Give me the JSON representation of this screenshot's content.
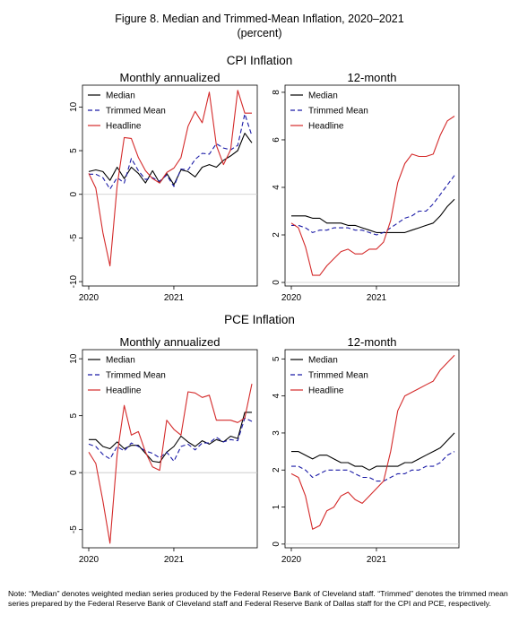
{
  "figure": {
    "title": "Figure 8. Median and Trimmed-Mean Inflation, 2020–2021",
    "subtitle": "(percent)",
    "sections": [
      {
        "title": "CPI Inflation"
      },
      {
        "title": "PCE Inflation"
      }
    ],
    "note": "Note: “Median” denotes weighted median series produced by the Federal Reserve Bank of Cleveland staff. “Trimmed” denotes the trimmed mean series prepared by the Federal Reserve Bank of Cleveland staff and Federal Reserve Bank of Dallas staff for the CPI and PCE, respectively."
  },
  "colors": {
    "median": "#000000",
    "trimmed_mean": "#1a1aa6",
    "headline": "#d42a2a",
    "zero_line": "#c8c8c8"
  },
  "chart_data": [
    {
      "id": "cpi-monthly",
      "type": "line",
      "title": "Monthly annualized",
      "x": [
        "2020-01",
        "2020-02",
        "2020-03",
        "2020-04",
        "2020-05",
        "2020-06",
        "2020-07",
        "2020-08",
        "2020-09",
        "2020-10",
        "2020-11",
        "2020-12",
        "2021-01",
        "2021-02",
        "2021-03",
        "2021-04",
        "2021-05",
        "2021-06",
        "2021-07",
        "2021-08",
        "2021-09",
        "2021-10",
        "2021-11",
        "2021-12"
      ],
      "xticks": [
        "2020",
        "2021"
      ],
      "ylim": [
        -10.5,
        12.5
      ],
      "yticks": [
        "-10",
        "-5",
        "0",
        "5",
        "10"
      ],
      "legend_position": "top-left",
      "series": [
        {
          "name": "Median",
          "style": "solid",
          "color": "#000000",
          "values": [
            2.6,
            2.8,
            2.6,
            1.6,
            3.1,
            1.8,
            3.1,
            2.4,
            1.3,
            2.7,
            1.3,
            2.4,
            1.1,
            2.8,
            2.6,
            2.0,
            3.1,
            3.4,
            3.1,
            3.9,
            4.4,
            5.0,
            7.0,
            5.9
          ]
        },
        {
          "name": "Trimmed Mean",
          "style": "dashed",
          "color": "#1a1aa6",
          "values": [
            2.3,
            2.3,
            1.9,
            0.6,
            1.9,
            1.3,
            4.1,
            2.7,
            1.7,
            1.9,
            1.5,
            2.2,
            0.9,
            2.9,
            2.8,
            4.0,
            4.7,
            4.6,
            5.8,
            5.3,
            5.1,
            5.6,
            9.2,
            6.7
          ]
        },
        {
          "name": "Headline",
          "style": "solid",
          "color": "#d42a2a",
          "values": [
            2.4,
            0.7,
            -4.4,
            -8.2,
            1.0,
            6.5,
            6.4,
            4.2,
            2.7,
            1.8,
            1.3,
            2.5,
            3.0,
            4.2,
            7.8,
            9.5,
            8.2,
            11.7,
            5.6,
            3.4,
            5.1,
            11.9,
            9.3,
            9.3
          ]
        }
      ]
    },
    {
      "id": "cpi-12month",
      "type": "line",
      "title": "12-month",
      "x": [
        "2020-01",
        "2020-02",
        "2020-03",
        "2020-04",
        "2020-05",
        "2020-06",
        "2020-07",
        "2020-08",
        "2020-09",
        "2020-10",
        "2020-11",
        "2020-12",
        "2021-01",
        "2021-02",
        "2021-03",
        "2021-04",
        "2021-05",
        "2021-06",
        "2021-07",
        "2021-08",
        "2021-09",
        "2021-10",
        "2021-11",
        "2021-12"
      ],
      "xticks": [
        "2020",
        "2021"
      ],
      "ylim": [
        -0.15,
        8.3
      ],
      "yticks": [
        "0",
        "2",
        "4",
        "6",
        "8"
      ],
      "legend_position": "top-left",
      "series": [
        {
          "name": "Median",
          "style": "solid",
          "color": "#000000",
          "values": [
            2.8,
            2.8,
            2.8,
            2.7,
            2.7,
            2.5,
            2.5,
            2.5,
            2.4,
            2.4,
            2.3,
            2.2,
            2.1,
            2.1,
            2.1,
            2.1,
            2.1,
            2.2,
            2.3,
            2.4,
            2.5,
            2.8,
            3.2,
            3.5
          ]
        },
        {
          "name": "Trimmed Mean",
          "style": "dashed",
          "color": "#1a1aa6",
          "values": [
            2.4,
            2.4,
            2.3,
            2.1,
            2.2,
            2.2,
            2.3,
            2.3,
            2.3,
            2.2,
            2.2,
            2.1,
            2.0,
            2.1,
            2.3,
            2.5,
            2.7,
            2.8,
            3.0,
            3.0,
            3.3,
            3.7,
            4.1,
            4.5
          ]
        },
        {
          "name": "Headline",
          "style": "solid",
          "color": "#d42a2a",
          "values": [
            2.5,
            2.3,
            1.5,
            0.3,
            0.3,
            0.7,
            1.0,
            1.3,
            1.4,
            1.2,
            1.2,
            1.4,
            1.4,
            1.7,
            2.6,
            4.2,
            5.0,
            5.4,
            5.3,
            5.3,
            5.4,
            6.2,
            6.8,
            7.0
          ]
        }
      ]
    },
    {
      "id": "pce-monthly",
      "type": "line",
      "title": "Monthly annualized",
      "x": [
        "2020-01",
        "2020-02",
        "2020-03",
        "2020-04",
        "2020-05",
        "2020-06",
        "2020-07",
        "2020-08",
        "2020-09",
        "2020-10",
        "2020-11",
        "2020-12",
        "2021-01",
        "2021-02",
        "2021-03",
        "2021-04",
        "2021-05",
        "2021-06",
        "2021-07",
        "2021-08",
        "2021-09",
        "2021-10",
        "2021-11",
        "2021-12"
      ],
      "xticks": [
        "2020",
        "2021"
      ],
      "ylim": [
        -6.6,
        10.8
      ],
      "yticks": [
        "-5",
        "0",
        "5",
        "10"
      ],
      "legend_position": "top-left",
      "series": [
        {
          "name": "Median",
          "style": "solid",
          "color": "#000000",
          "values": [
            2.9,
            2.9,
            2.3,
            2.1,
            2.7,
            2.1,
            2.4,
            2.4,
            1.7,
            1.0,
            0.9,
            1.8,
            2.3,
            3.2,
            2.7,
            2.3,
            2.8,
            2.5,
            2.9,
            2.7,
            3.2,
            3.0,
            5.3,
            5.3
          ]
        },
        {
          "name": "Trimmed Mean",
          "style": "dashed",
          "color": "#1a1aa6",
          "values": [
            2.5,
            2.3,
            1.6,
            1.2,
            2.3,
            1.9,
            2.6,
            2.3,
            1.9,
            1.7,
            1.3,
            1.8,
            1.0,
            2.3,
            2.5,
            2.0,
            2.6,
            2.6,
            3.1,
            2.7,
            2.9,
            2.8,
            4.8,
            4.5
          ]
        },
        {
          "name": "Headline",
          "style": "solid",
          "color": "#d42a2a",
          "values": [
            1.8,
            0.8,
            -2.5,
            -6.2,
            1.6,
            5.9,
            3.3,
            3.6,
            1.8,
            0.5,
            0.2,
            4.6,
            3.8,
            3.3,
            7.1,
            7.0,
            6.6,
            6.8,
            4.6,
            4.6,
            4.6,
            4.4,
            4.8,
            7.8
          ]
        }
      ]
    },
    {
      "id": "pce-12month",
      "type": "line",
      "title": "12-month",
      "x": [
        "2020-01",
        "2020-02",
        "2020-03",
        "2020-04",
        "2020-05",
        "2020-06",
        "2020-07",
        "2020-08",
        "2020-09",
        "2020-10",
        "2020-11",
        "2020-12",
        "2021-01",
        "2021-02",
        "2021-03",
        "2021-04",
        "2021-05",
        "2021-06",
        "2021-07",
        "2021-08",
        "2021-09",
        "2021-10",
        "2021-11",
        "2021-12"
      ],
      "xticks": [
        "2020",
        "2021"
      ],
      "ylim": [
        -0.1,
        5.25
      ],
      "yticks": [
        "0",
        "1",
        "2",
        "3",
        "4",
        "5"
      ],
      "legend_position": "top-left",
      "series": [
        {
          "name": "Median",
          "style": "solid",
          "color": "#000000",
          "values": [
            2.5,
            2.5,
            2.4,
            2.3,
            2.4,
            2.4,
            2.3,
            2.2,
            2.2,
            2.1,
            2.1,
            2.0,
            2.1,
            2.1,
            2.1,
            2.1,
            2.2,
            2.2,
            2.3,
            2.4,
            2.5,
            2.6,
            2.8,
            3.0
          ]
        },
        {
          "name": "Trimmed Mean",
          "style": "dashed",
          "color": "#1a1aa6",
          "values": [
            2.1,
            2.1,
            2.0,
            1.8,
            1.9,
            2.0,
            2.0,
            2.0,
            2.0,
            1.9,
            1.8,
            1.8,
            1.7,
            1.7,
            1.8,
            1.9,
            1.9,
            2.0,
            2.0,
            2.1,
            2.1,
            2.2,
            2.4,
            2.5
          ]
        },
        {
          "name": "Headline",
          "style": "solid",
          "color": "#d42a2a",
          "values": [
            1.9,
            1.8,
            1.3,
            0.4,
            0.5,
            0.9,
            1.0,
            1.3,
            1.4,
            1.2,
            1.1,
            1.3,
            1.5,
            1.7,
            2.5,
            3.6,
            4.0,
            4.1,
            4.2,
            4.3,
            4.4,
            4.7,
            4.9,
            5.1
          ]
        }
      ]
    }
  ]
}
